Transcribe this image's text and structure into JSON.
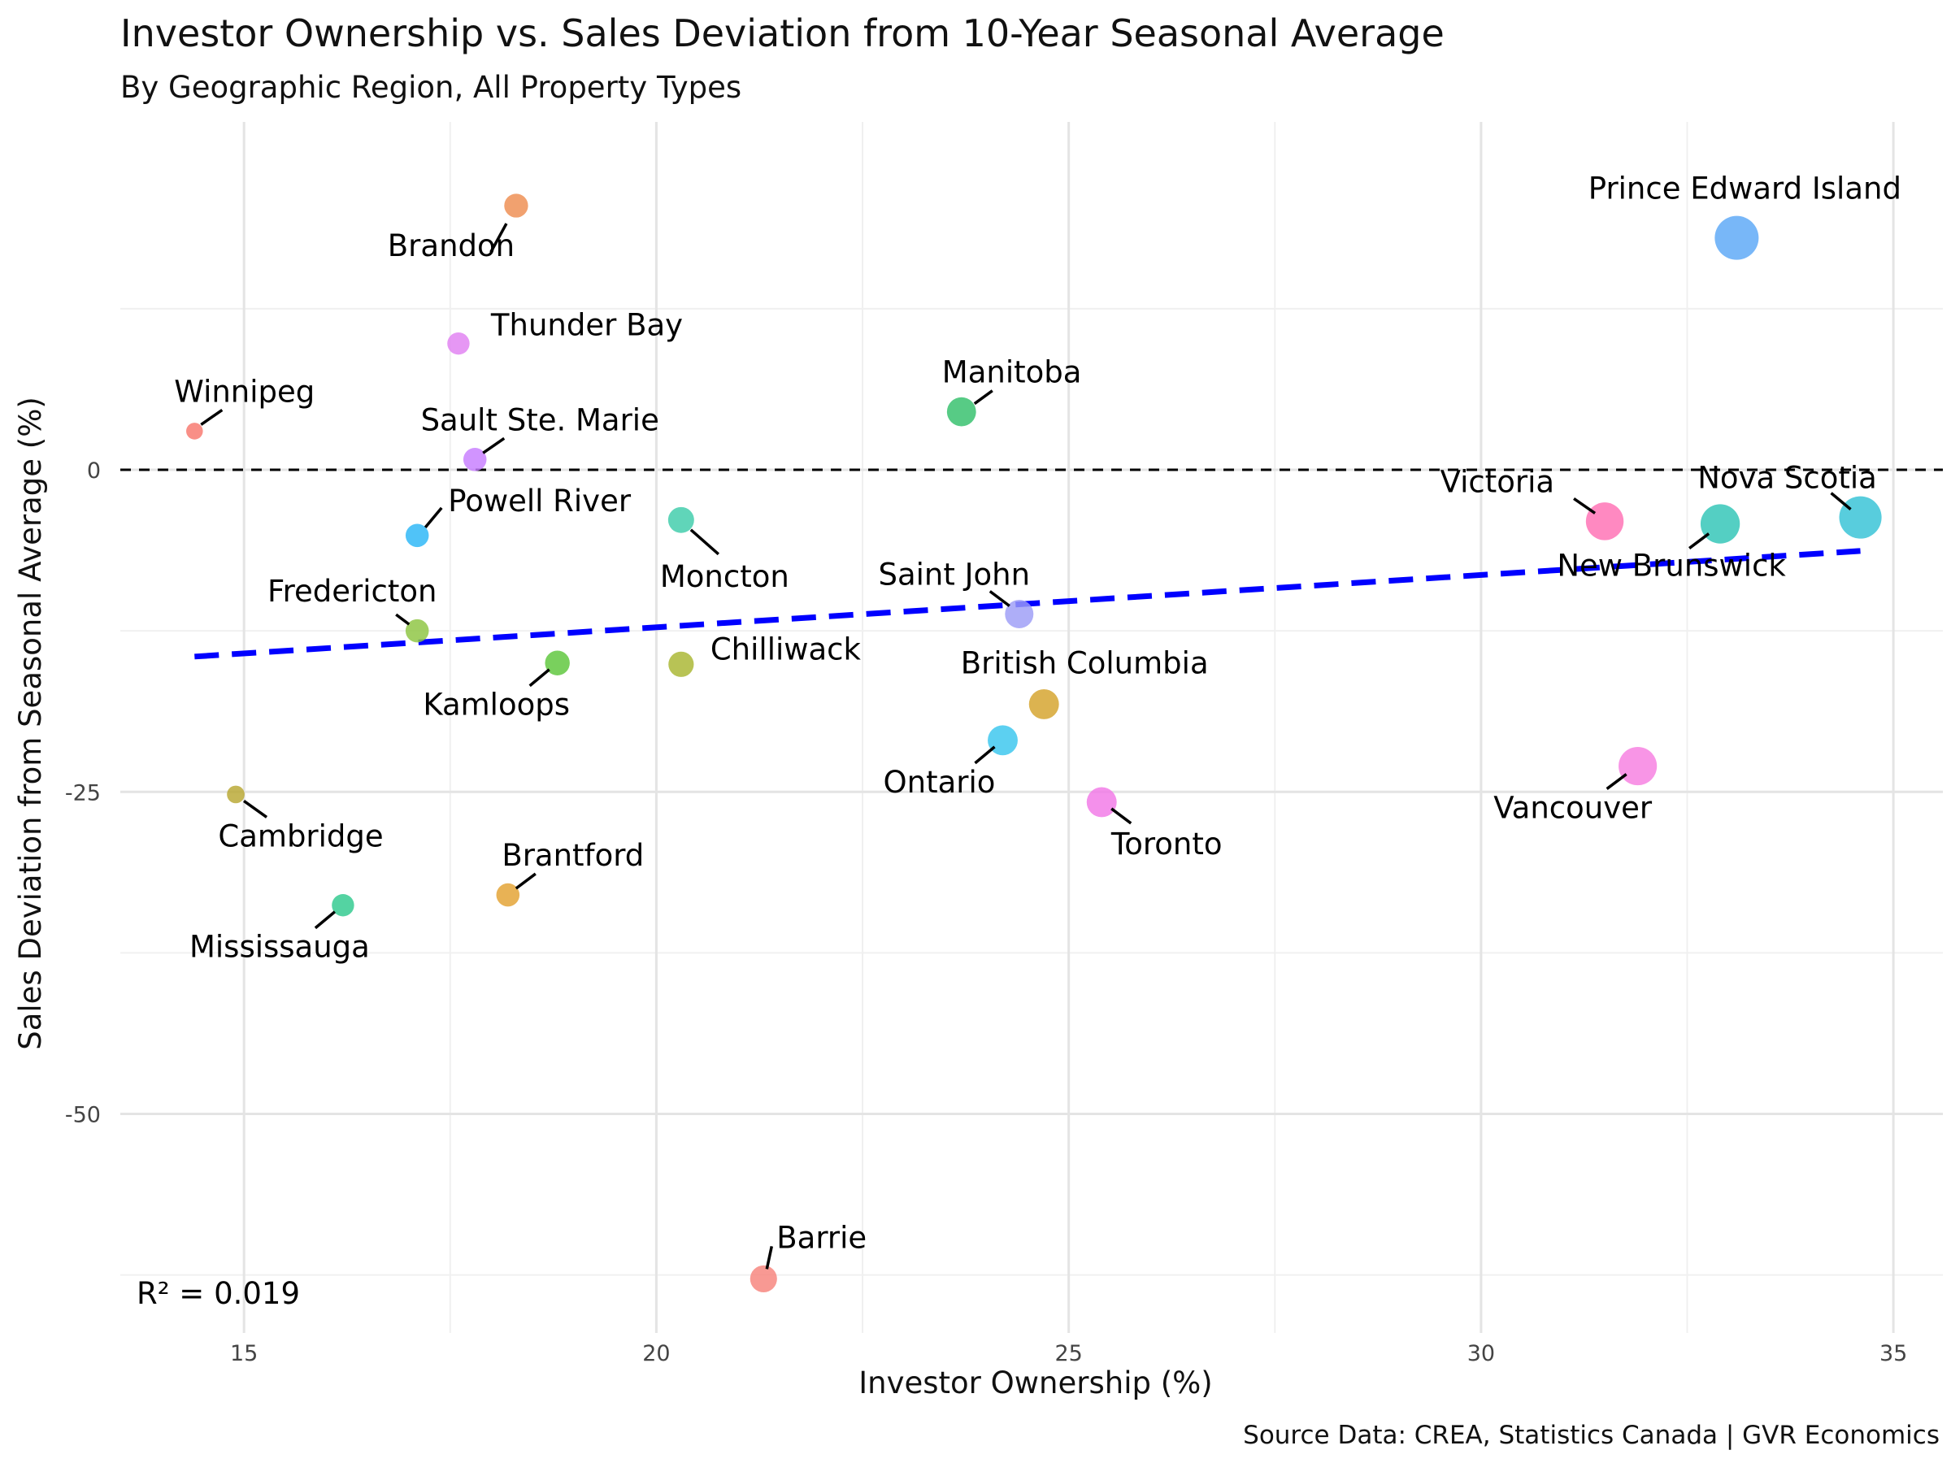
{
  "chart_data": {
    "type": "scatter",
    "title": "Investor Ownership vs. Sales Deviation from 10-Year Seasonal Average",
    "subtitle": "By Geographic Region, All Property Types",
    "xlabel": "Investor Ownership (%)",
    "ylabel": "Sales Deviation from Seasonal Average (%)",
    "caption": "Source Data: CREA, Statistics Canada | GVR Economics",
    "r2_label": "R² = 0.019",
    "xlim": [
      13.5,
      35.6
    ],
    "ylim": [
      -67,
      27
    ],
    "x_ticks": [
      15,
      20,
      25,
      30,
      35
    ],
    "y_ticks": [
      0,
      -25,
      -50
    ],
    "grid": true,
    "legend": "none",
    "reference_line": {
      "y": 0,
      "style": "dashed",
      "color": "#000000"
    },
    "trend_line": {
      "x": [
        14.4,
        34.6
      ],
      "y": [
        -14.5,
        -6.3
      ],
      "color": "#0000ff",
      "style": "dashed"
    },
    "points": [
      {
        "label": "Prince Edward Island",
        "x": 33.1,
        "y": 18.0,
        "size": 1.0,
        "color": "#5aa7f7"
      },
      {
        "label": "Brandon",
        "x": 18.3,
        "y": 20.5,
        "size": 0.35,
        "color": "#ee8c4f"
      },
      {
        "label": "Thunder Bay",
        "x": 17.6,
        "y": 9.8,
        "size": 0.3,
        "color": "#e080f2"
      },
      {
        "label": "Winnipeg",
        "x": 14.4,
        "y": 3.0,
        "size": 0.12,
        "color": "#f8766d"
      },
      {
        "label": "Manitoba",
        "x": 23.7,
        "y": 4.5,
        "size": 0.52,
        "color": "#32c06a"
      },
      {
        "label": "Sault Ste. Marie",
        "x": 17.8,
        "y": 0.8,
        "size": 0.33,
        "color": "#c77cff"
      },
      {
        "label": "Powell River",
        "x": 17.1,
        "y": -5.1,
        "size": 0.33,
        "color": "#29b6f6"
      },
      {
        "label": "Moncton",
        "x": 20.3,
        "y": -3.9,
        "size": 0.42,
        "color": "#3dcca9"
      },
      {
        "label": "Victoria",
        "x": 31.5,
        "y": -4.0,
        "size": 0.8,
        "color": "#ff6fb3"
      },
      {
        "label": "New Brunswick",
        "x": 32.9,
        "y": -4.2,
        "size": 0.85,
        "color": "#2ec4b6"
      },
      {
        "label": "Nova Scotia",
        "x": 34.6,
        "y": -3.7,
        "size": 0.95,
        "color": "#33c2d6"
      },
      {
        "label": "Saint John",
        "x": 24.4,
        "y": -11.2,
        "size": 0.5,
        "color": "#9c9cf7"
      },
      {
        "label": "Fredericton",
        "x": 17.1,
        "y": -12.5,
        "size": 0.33,
        "color": "#8cc43f"
      },
      {
        "label": "Kamloops",
        "x": 18.8,
        "y": -15.0,
        "size": 0.38,
        "color": "#5cc639"
      },
      {
        "label": "Chilliwack",
        "x": 20.3,
        "y": -15.1,
        "size": 0.4,
        "color": "#a8b62f"
      },
      {
        "label": "British Columbia",
        "x": 24.7,
        "y": -18.2,
        "size": 0.55,
        "color": "#d4a22a"
      },
      {
        "label": "Ontario",
        "x": 24.2,
        "y": -21.0,
        "size": 0.55,
        "color": "#38c6ee"
      },
      {
        "label": "Vancouver",
        "x": 31.9,
        "y": -23.0,
        "size": 0.82,
        "color": "#f77ee0"
      },
      {
        "label": "Toronto",
        "x": 25.4,
        "y": -25.8,
        "size": 0.55,
        "color": "#f277e6"
      },
      {
        "label": "Cambridge",
        "x": 14.9,
        "y": -25.2,
        "size": 0.15,
        "color": "#b8a731"
      },
      {
        "label": "Brantford",
        "x": 18.2,
        "y": -33.0,
        "size": 0.33,
        "color": "#e3a130"
      },
      {
        "label": "Mississauga",
        "x": 16.2,
        "y": -33.8,
        "size": 0.3,
        "color": "#2ec98d"
      },
      {
        "label": "Barrie",
        "x": 21.3,
        "y": -62.8,
        "size": 0.45,
        "color": "#f7837b"
      }
    ]
  }
}
